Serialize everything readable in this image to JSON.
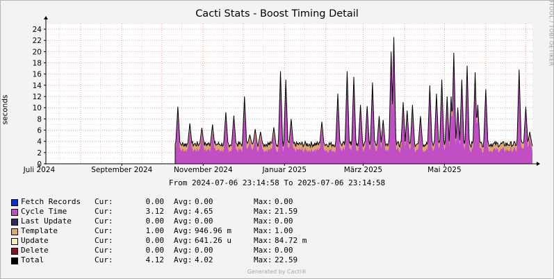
{
  "chart_data": {
    "type": "area",
    "title": "Cacti Stats - Boost Timing Detail",
    "ylabel": "seconds",
    "ylim": [
      0,
      25
    ],
    "yticks": [
      0,
      2,
      4,
      6,
      8,
      10,
      12,
      14,
      16,
      18,
      20,
      22,
      24
    ],
    "x_tick_labels": [
      "Juli 2024",
      "September 2024",
      "November 2024",
      "Januar 2025",
      "März 2025",
      "Mai 2025"
    ],
    "x_range": [
      "2024-07-06",
      "2025-07-06"
    ],
    "grid": true,
    "data_start": "2024-10-11",
    "series": [
      {
        "name": "Template",
        "color": "#e0a76a",
        "base": 1.0
      },
      {
        "name": "Cycle Time",
        "color": "#c04fc4"
      },
      {
        "name": "Total",
        "color": "#000000"
      }
    ],
    "spikes": [
      [
        "2024-10-13",
        10.2
      ],
      [
        "2024-10-22",
        7.2
      ],
      [
        "2024-10-31",
        6.4
      ],
      [
        "2024-11-08",
        7.0
      ],
      [
        "2024-11-18",
        9.2
      ],
      [
        "2024-11-24",
        8.6
      ],
      [
        "2024-12-02",
        12.0
      ],
      [
        "2024-12-06",
        5.2
      ],
      [
        "2024-12-10",
        6.2
      ],
      [
        "2024-12-14",
        5.7
      ],
      [
        "2024-12-24",
        6.5
      ],
      [
        "2024-12-29",
        16.5
      ],
      [
        "2025-01-02",
        15.0
      ],
      [
        "2025-01-06",
        8.0
      ],
      [
        "2025-01-29",
        7.5
      ],
      [
        "2025-02-10",
        12.5
      ],
      [
        "2025-02-17",
        16.5
      ],
      [
        "2025-02-22",
        15.5
      ],
      [
        "2025-02-27",
        10.5
      ],
      [
        "2025-03-04",
        10.3
      ],
      [
        "2025-03-08",
        14.5
      ],
      [
        "2025-03-13",
        8.5
      ],
      [
        "2025-03-16",
        7.8
      ],
      [
        "2025-03-22",
        20.0
      ],
      [
        "2025-03-24",
        22.6
      ],
      [
        "2025-03-31",
        11.0
      ],
      [
        "2025-04-03",
        9.5
      ],
      [
        "2025-04-07",
        10.5
      ],
      [
        "2025-04-13",
        8.5
      ],
      [
        "2025-04-20",
        14.0
      ],
      [
        "2025-04-25",
        12.5
      ],
      [
        "2025-04-29",
        15.0
      ],
      [
        "2025-05-03",
        12.0
      ],
      [
        "2025-05-06",
        12.0
      ],
      [
        "2025-05-08",
        19.8
      ],
      [
        "2025-05-11",
        10.0
      ],
      [
        "2025-05-14",
        15.0
      ],
      [
        "2025-05-18",
        17.5
      ],
      [
        "2025-05-24",
        16.3
      ],
      [
        "2025-05-26",
        10.5
      ],
      [
        "2025-06-01",
        13.3
      ],
      [
        "2025-06-26",
        16.8
      ],
      [
        "2025-07-01",
        10.2
      ],
      [
        "2025-07-04",
        5.7
      ]
    ]
  },
  "header": {
    "title": "Cacti Stats - Boost Timing Detail",
    "watermark": "RRDTOOL / TOBI OETIKER",
    "range_text": "From 2024-07-06 23:14:58 To 2025-07-06 23:14:58"
  },
  "legend": [
    {
      "name": "Fetch Records",
      "color": "#0033cc",
      "cur_label": "Cur:",
      "cur": "0.00",
      "avg_label": "Avg:",
      "avg": "0.00",
      "max_label": "Max:",
      "max": "0.00"
    },
    {
      "name": "Cycle Time",
      "color": "#c04fc4",
      "cur_label": "Cur:",
      "cur": "3.12",
      "avg_label": "Avg:",
      "avg": "4.65",
      "max_label": "Max:",
      "max": "21.59"
    },
    {
      "name": "Last Update",
      "color": "#2b2b55",
      "cur_label": "Cur:",
      "cur": "0.00",
      "avg_label": "Avg:",
      "avg": "0.00",
      "max_label": "Max:",
      "max": "0.00"
    },
    {
      "name": "Template",
      "color": "#e0a76a",
      "cur_label": "Cur:",
      "cur": "1.00",
      "avg_label": "Avg:",
      "avg": "946.96 m",
      "max_label": "Max:",
      "max": "1.00"
    },
    {
      "name": "Update",
      "color": "#f2efb4",
      "cur_label": "Cur:",
      "cur": "0.00",
      "avg_label": "Avg:",
      "avg": "641.26 u",
      "max_label": "Max:",
      "max": "84.72 m"
    },
    {
      "name": "Delete",
      "color": "#8c1020",
      "cur_label": "Cur:",
      "cur": "0.00",
      "avg_label": "Avg:",
      "avg": "0.00",
      "max_label": "Max:",
      "max": "0.00"
    },
    {
      "name": "Total",
      "color": "#000000",
      "cur_label": "Cur:",
      "cur": "4.12",
      "avg_label": "Avg:",
      "avg": "4.02",
      "max_label": "Max:",
      "max": "22.59"
    }
  ],
  "footer": {
    "generated_by": "Generated by Cacti®"
  }
}
